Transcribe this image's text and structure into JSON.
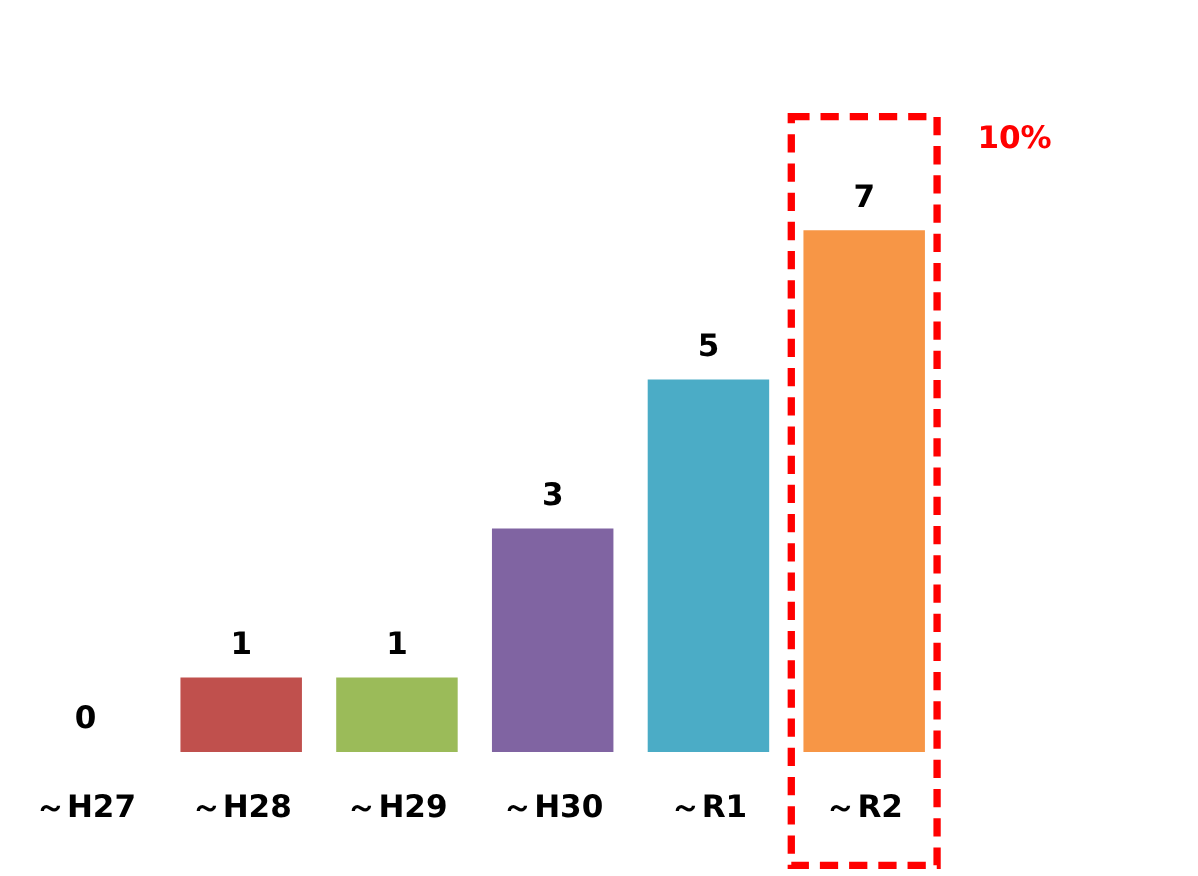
{
  "chart_data": {
    "type": "bar",
    "categories": [
      "～H27",
      "～H28",
      "～H29",
      "～H30",
      "～R1",
      "～R2"
    ],
    "values": [
      0,
      1,
      1,
      3,
      5,
      7
    ],
    "colors": [
      "#4f81bd",
      "#c0504d",
      "#9bbb59",
      "#8064a2",
      "#4bacc6",
      "#f79646"
    ],
    "data_labels": true,
    "annotations": [
      "10%"
    ]
  }
}
